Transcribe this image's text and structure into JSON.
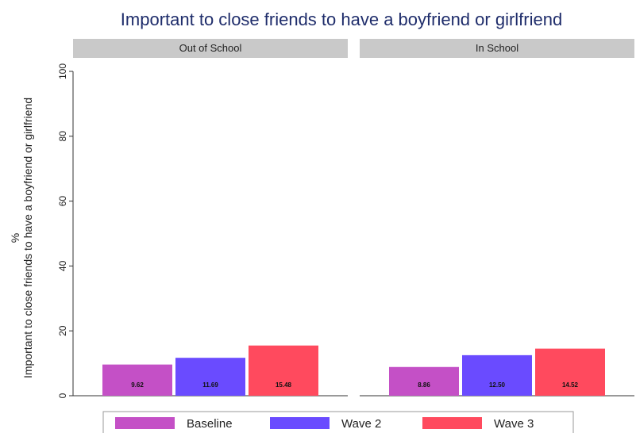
{
  "chart_data": {
    "type": "bar",
    "title": "Important to close friends to have a boyfriend or girlfriend",
    "ylabel_lines": [
      "%",
      "Important to close friends to have a boyfriend or girlfriend"
    ],
    "ylim": [
      0,
      100
    ],
    "yticks": [
      0,
      20,
      40,
      60,
      80,
      100
    ],
    "panels": [
      {
        "name": "Out of School",
        "values": [
          9.62,
          11.69,
          15.48
        ],
        "labels": [
          "9.62",
          "11.69",
          "15.48"
        ]
      },
      {
        "name": "In School",
        "values": [
          8.86,
          12.5,
          14.52
        ],
        "labels": [
          "8.86",
          "12.50",
          "14.52"
        ]
      }
    ],
    "series": [
      {
        "name": "Baseline",
        "color": "#c450c6"
      },
      {
        "name": "Wave 2",
        "color": "#6a4bff"
      },
      {
        "name": "Wave 3",
        "color": "#ff4a5e"
      }
    ],
    "strip_color": "#c9c9c9",
    "legend_position": "bottom"
  }
}
